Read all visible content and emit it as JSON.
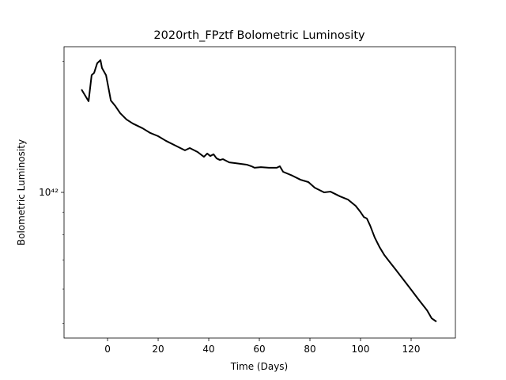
{
  "chart_data": {
    "type": "line",
    "title": "2020rth_FPztf Bolometric Luminosity",
    "x_label": "Time (Days)",
    "y_label": "Bolometric Luminosity",
    "x": [
      -10.3,
      -7.5,
      -6.3,
      -5.3,
      -4.1,
      -2.8,
      -2.2,
      -0.6,
      0.6,
      1.3,
      3.1,
      5.0,
      7.5,
      10.0,
      13.8,
      16.9,
      20.0,
      23.1,
      26.9,
      29.4,
      30.6,
      32.5,
      35.6,
      38.1,
      39.4,
      40.6,
      41.9,
      43.1,
      44.4,
      45.6,
      48.1,
      50.6,
      55.0,
      56.9,
      58.1,
      60.6,
      63.8,
      66.9,
      68.1,
      69.4,
      73.1,
      76.3,
      79.4,
      81.9,
      85.6,
      88.1,
      91.9,
      95.0,
      98.1,
      100.0,
      101.3,
      102.5,
      103.8,
      105.6,
      107.5,
      109.4,
      111.3,
      113.8,
      116.9,
      120.0,
      123.1,
      126.3,
      128.1,
      130.0
    ],
    "values": [
      1.723e+42,
      1.619e+42,
      1.858e+42,
      1.882e+42,
      1.979e+42,
      2.012e+42,
      1.93e+42,
      1.858e+42,
      1.709e+42,
      1.625e+42,
      1.578e+42,
      1.52e+42,
      1.47e+42,
      1.439e+42,
      1.404e+42,
      1.369e+42,
      1.346e+42,
      1.313e+42,
      1.28e+42,
      1.259e+42,
      1.249e+42,
      1.264e+42,
      1.238e+42,
      1.207e+42,
      1.228e+42,
      1.212e+42,
      1.223e+42,
      1.197e+42,
      1.187e+42,
      1.192e+42,
      1.172e+42,
      1.167e+42,
      1.158e+42,
      1.148e+42,
      1.139e+42,
      1.143e+42,
      1.139e+42,
      1.139e+42,
      1.148e+42,
      1.115e+42,
      1.092e+42,
      1.069e+42,
      1.056e+42,
      1.025e+42,
      1e+42,
      1.004e+42,
      9.79e+41,
      9.63e+41,
      9.31e+41,
      9.01e+41,
      8.78e+41,
      8.71e+41,
      8.39e+41,
      7.88e+41,
      7.49e+41,
      7.18e+41,
      6.95e+41,
      6.66e+41,
      6.31e+41,
      5.98e+41,
      5.66e+41,
      5.36e+41,
      5.14e+41,
      5.05e+41
    ],
    "color": "#000000",
    "xlim": [
      -17.2,
      137.5
    ],
    "xticks": [
      0,
      20,
      40,
      60,
      80,
      100,
      120
    ],
    "ylim": [
      4.63e+41,
      2.16e+42
    ],
    "ylog": true,
    "yticks": [
      {
        "value": 1e+42,
        "label": "10⁴²"
      }
    ],
    "yminorticks": [
      5e+41,
      6e+41,
      7e+41,
      8e+41,
      9e+41,
      2e+42
    ]
  }
}
